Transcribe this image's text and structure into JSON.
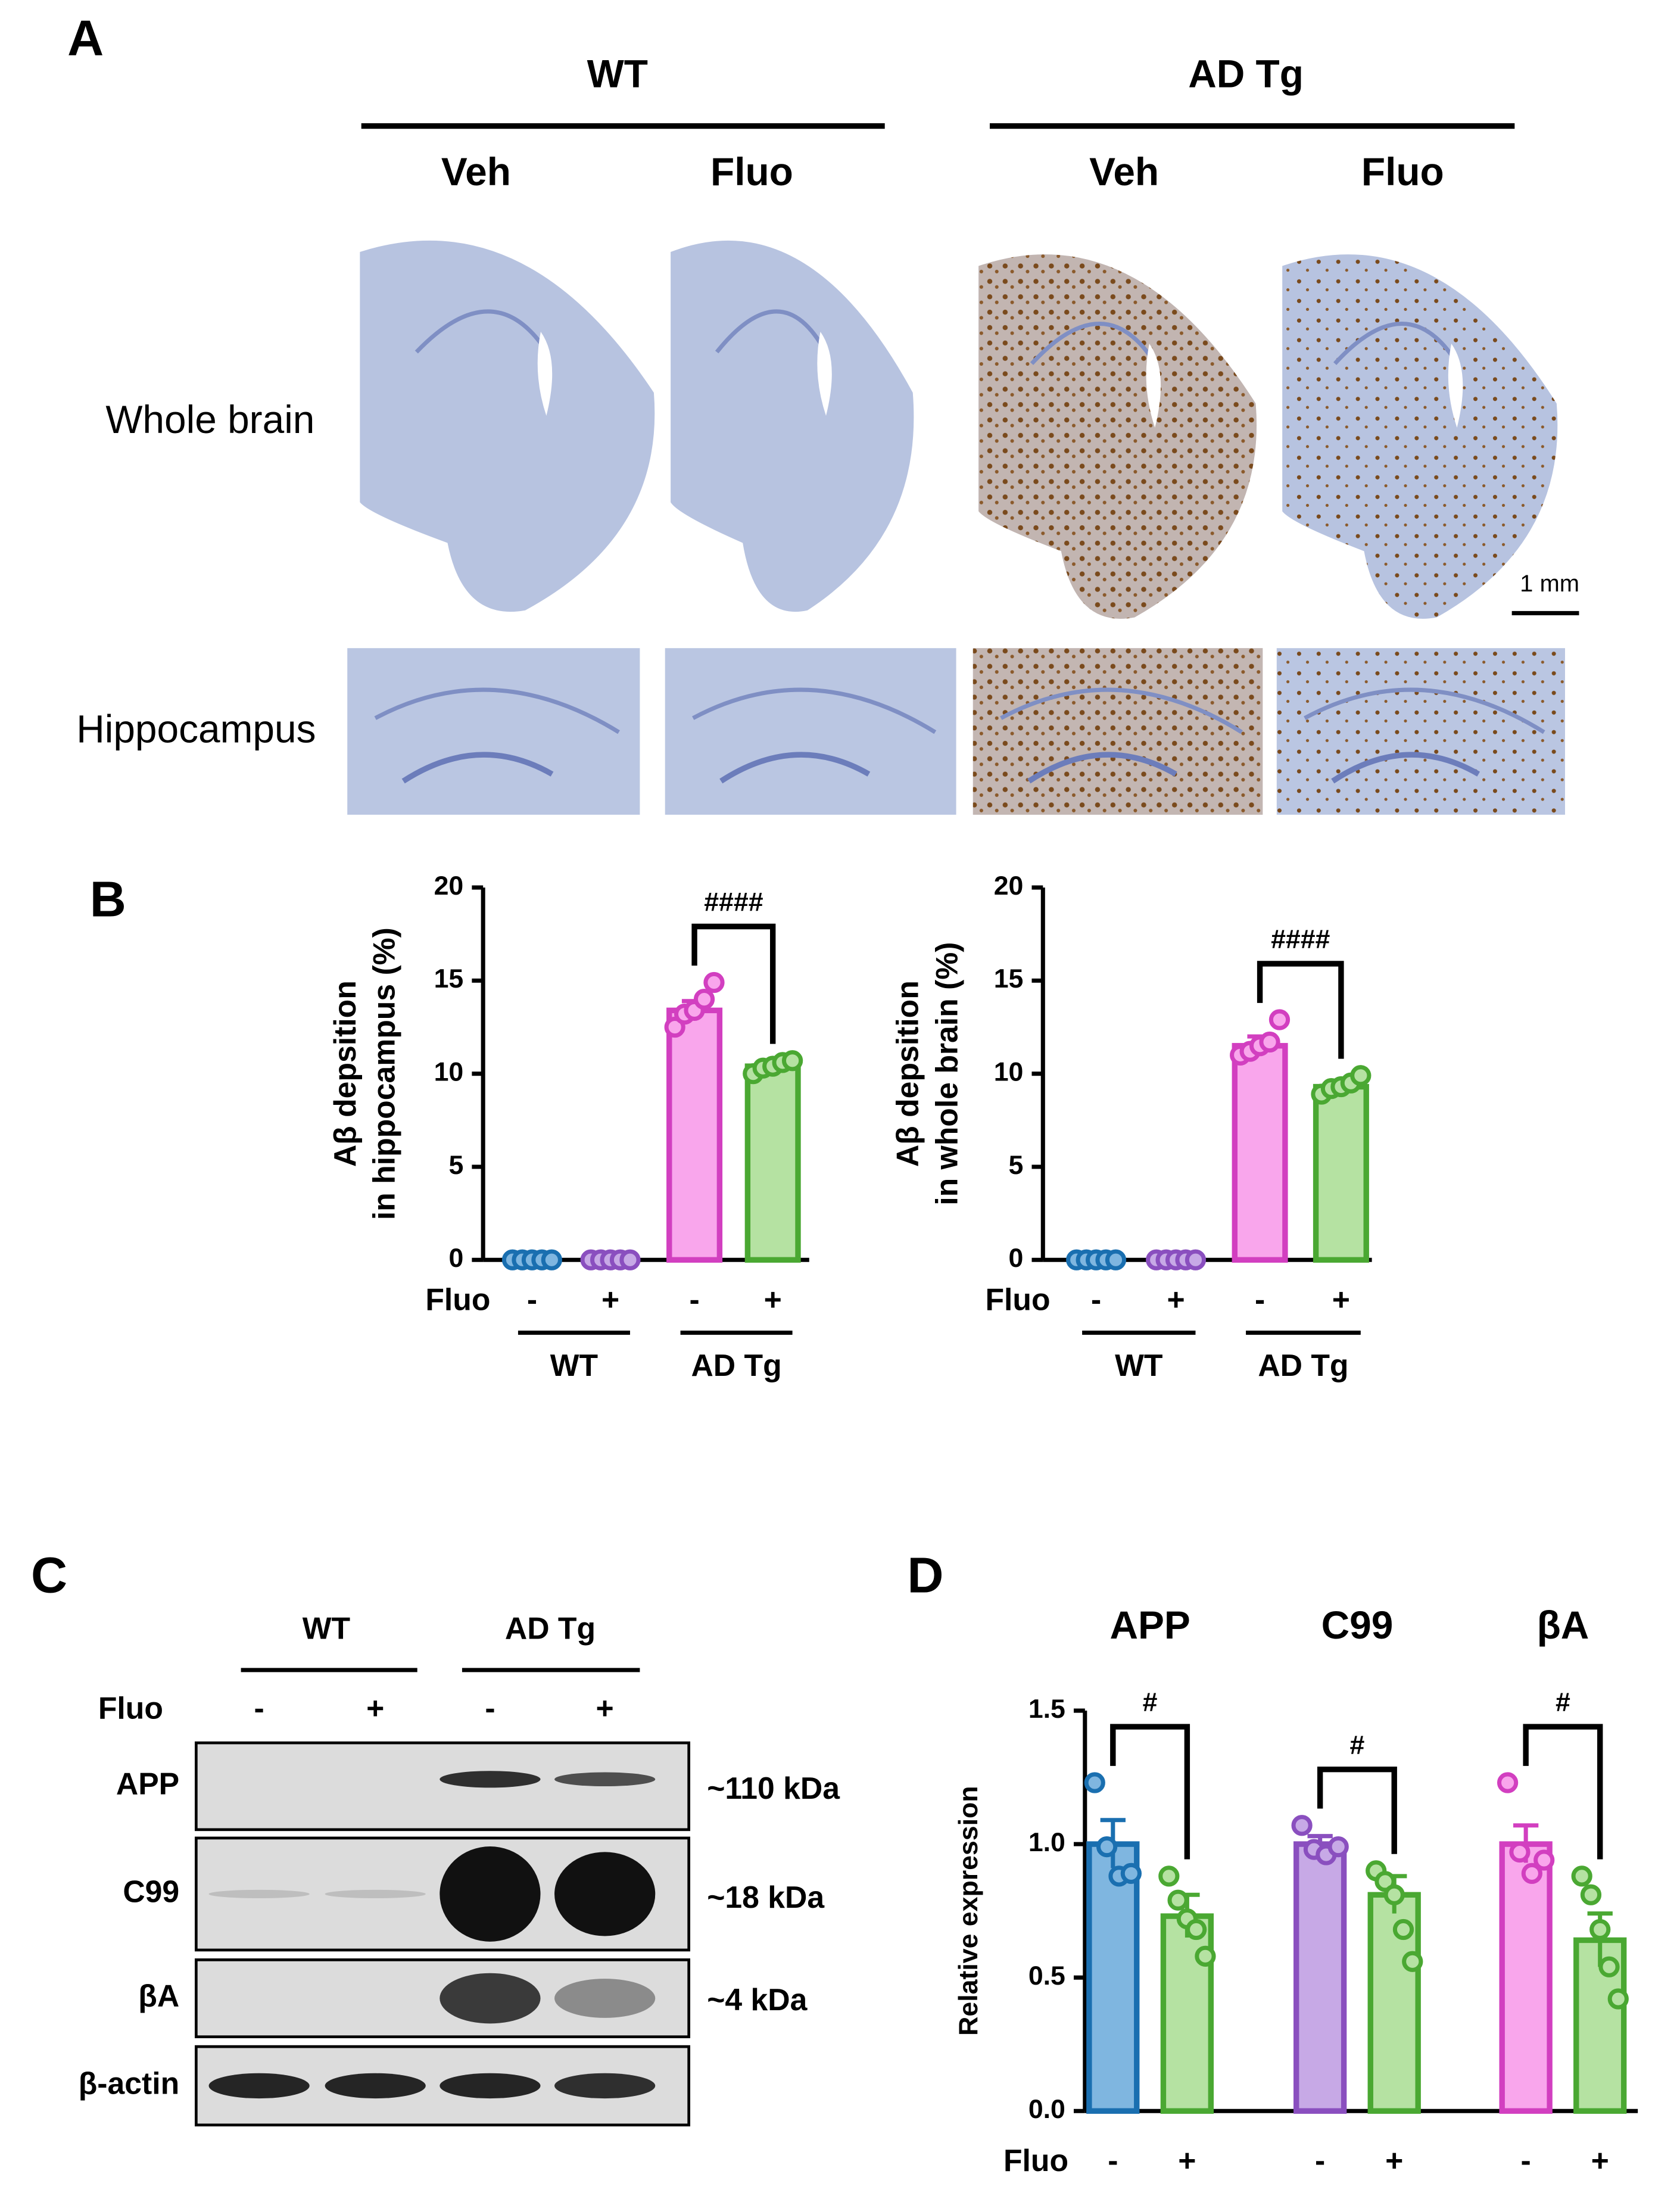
{
  "panel_labels": [
    "A",
    "B",
    "C",
    "D"
  ],
  "panel_a": {
    "groups": [
      "WT",
      "AD Tg"
    ],
    "treatments": [
      "Veh",
      "Fluo",
      "Veh",
      "Fluo"
    ],
    "rows": [
      "Whole brain",
      "Hippocampus"
    ],
    "scale_bar": "1 mm"
  },
  "chart_data": [
    {
      "type": "bar",
      "y_label": [
        "Aβ depsition",
        "in hippocampus (%)"
      ],
      "category_label": "Fluo",
      "categories": [
        "-",
        "+",
        "-",
        "+"
      ],
      "groups": [
        "WT",
        "AD Tg"
      ],
      "values": [
        0,
        0,
        13.4,
        10.4
      ],
      "errors": [
        0,
        0,
        0.5,
        0.3
      ],
      "points": [
        [
          0,
          0,
          0,
          0,
          0
        ],
        [
          0,
          0,
          0,
          0,
          0
        ],
        [
          12.5,
          13.2,
          13.4,
          14.0,
          14.9
        ],
        [
          10.0,
          10.3,
          10.4,
          10.6,
          10.7
        ]
      ],
      "colors": [
        "#7fb6e0",
        "#c7a9e6",
        "#f9a6ec",
        "#b5e2a2"
      ],
      "edge_colors": [
        "#1a6fb0",
        "#8a4fbf",
        "#d23fc0",
        "#4aa832"
      ],
      "ylim": [
        0,
        20
      ],
      "yticks": [
        0,
        5,
        10,
        15,
        20
      ],
      "annotations": [
        {
          "text": "####",
          "between": [
            2,
            3
          ]
        }
      ]
    },
    {
      "type": "bar",
      "y_label": [
        "Aβ depsition",
        "in whole brain (%)"
      ],
      "category_label": "Fluo",
      "categories": [
        "-",
        "+",
        "-",
        "+"
      ],
      "groups": [
        "WT",
        "AD Tg"
      ],
      "values": [
        0,
        0,
        11.5,
        9.3
      ],
      "errors": [
        0,
        0,
        0.5,
        0.3
      ],
      "points": [
        [
          0,
          0,
          0,
          0,
          0
        ],
        [
          0,
          0,
          0,
          0,
          0
        ],
        [
          11.0,
          11.2,
          11.5,
          11.7,
          12.9
        ],
        [
          8.9,
          9.2,
          9.3,
          9.5,
          9.9
        ]
      ],
      "colors": [
        "#7fb6e0",
        "#c7a9e6",
        "#f9a6ec",
        "#b5e2a2"
      ],
      "edge_colors": [
        "#1a6fb0",
        "#8a4fbf",
        "#d23fc0",
        "#4aa832"
      ],
      "ylim": [
        0,
        20
      ],
      "yticks": [
        0,
        5,
        10,
        15,
        20
      ],
      "annotations": [
        {
          "text": "####",
          "between": [
            2,
            3
          ]
        }
      ]
    },
    {
      "type": "bar",
      "y_label": [
        "Relative expression"
      ],
      "category_label": "Fluo",
      "categories": [
        "-",
        "+",
        "-",
        "+",
        "-",
        "+"
      ],
      "titles": [
        "APP",
        "C99",
        "βA"
      ],
      "values": [
        1.0,
        0.73,
        1.0,
        0.81,
        1.0,
        0.64
      ],
      "errors": [
        0.09,
        0.08,
        0.03,
        0.07,
        0.07,
        0.1
      ],
      "points": [
        [
          1.23,
          0.99,
          0.88,
          0.89
        ],
        [
          0.88,
          0.79,
          0.72,
          0.68,
          0.58
        ],
        [
          1.07,
          0.98,
          0.96,
          0.99
        ],
        [
          0.9,
          0.86,
          0.81,
          0.68,
          0.56
        ],
        [
          1.23,
          0.97,
          0.89,
          0.94
        ],
        [
          0.88,
          0.81,
          0.68,
          0.54,
          0.42
        ]
      ],
      "colors": [
        "#7fb6e0",
        "#b5e2a2",
        "#c7a9e6",
        "#b5e2a2",
        "#f9a6ec",
        "#b5e2a2"
      ],
      "edge_colors": [
        "#1a6fb0",
        "#4aa832",
        "#8a4fbf",
        "#4aa832",
        "#d23fc0",
        "#4aa832"
      ],
      "ylim": [
        0,
        1.5
      ],
      "yticks": [
        {
          "value": 0,
          "label": "0.0"
        },
        0.5,
        {
          "value": 1,
          "label": "1.0"
        },
        1.5
      ],
      "annotations": [
        {
          "text": "#",
          "between": [
            0,
            1
          ]
        },
        {
          "text": "#",
          "between": [
            2,
            3
          ]
        },
        {
          "text": "#",
          "between": [
            4,
            5
          ]
        }
      ]
    }
  ],
  "panel_c": {
    "groups": [
      "WT",
      "AD Tg"
    ],
    "row_label": "Fluo",
    "lanes": [
      "-",
      "+",
      "-",
      "+"
    ],
    "blots": [
      {
        "name": "APP",
        "size": "~110 kDa"
      },
      {
        "name": "C99",
        "size": "~18 kDa"
      },
      {
        "name": "βA",
        "size": "~4 kDa"
      },
      {
        "name": "β-actin"
      }
    ]
  }
}
